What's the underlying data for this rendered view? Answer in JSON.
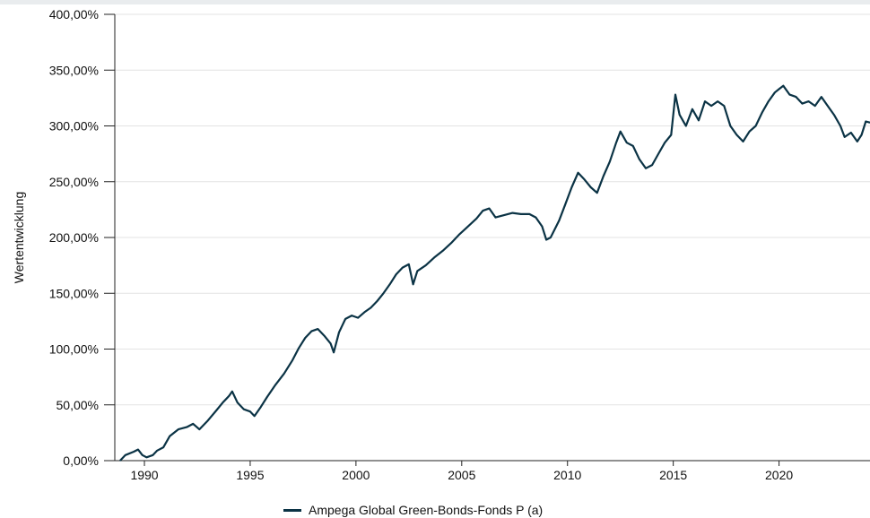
{
  "chart_data": {
    "type": "line",
    "ylabel": "Wertentwicklung",
    "y_ticks": [
      "0,00%",
      "50,00%",
      "100,00%",
      "150,00%",
      "200,00%",
      "250,00%",
      "300,00%",
      "350,00%",
      "400,00%"
    ],
    "x_ticks": [
      "1990",
      "1995",
      "2000",
      "2005",
      "2010",
      "2015",
      "2020"
    ],
    "ylim": [
      0,
      400
    ],
    "xlim": [
      1988.6,
      2024.3
    ],
    "grid": "horizontal",
    "legend_position": "bottom-center",
    "series": [
      {
        "name": "Ampega Global Green-Bonds-Fonds P (a)",
        "color": "#0b3345",
        "points": [
          [
            1988.85,
            0
          ],
          [
            1989.1,
            5
          ],
          [
            1989.5,
            8
          ],
          [
            1989.7,
            10
          ],
          [
            1989.9,
            5
          ],
          [
            1990.1,
            3
          ],
          [
            1990.4,
            5
          ],
          [
            1990.6,
            9
          ],
          [
            1990.9,
            12
          ],
          [
            1991.2,
            22
          ],
          [
            1991.6,
            28
          ],
          [
            1992.0,
            30
          ],
          [
            1992.3,
            33
          ],
          [
            1992.6,
            28
          ],
          [
            1993.0,
            36
          ],
          [
            1993.4,
            45
          ],
          [
            1993.7,
            52
          ],
          [
            1994.0,
            58
          ],
          [
            1994.15,
            62
          ],
          [
            1994.4,
            52
          ],
          [
            1994.7,
            46
          ],
          [
            1995.0,
            44
          ],
          [
            1995.2,
            40
          ],
          [
            1995.5,
            48
          ],
          [
            1995.8,
            57
          ],
          [
            1996.2,
            68
          ],
          [
            1996.6,
            78
          ],
          [
            1997.0,
            90
          ],
          [
            1997.3,
            101
          ],
          [
            1997.6,
            110
          ],
          [
            1997.9,
            116
          ],
          [
            1998.2,
            118
          ],
          [
            1998.5,
            112
          ],
          [
            1998.8,
            105
          ],
          [
            1998.95,
            97
          ],
          [
            1999.2,
            115
          ],
          [
            1999.5,
            127
          ],
          [
            1999.8,
            130
          ],
          [
            2000.1,
            128
          ],
          [
            2000.4,
            133
          ],
          [
            2000.7,
            137
          ],
          [
            2001.0,
            143
          ],
          [
            2001.3,
            150
          ],
          [
            2001.6,
            158
          ],
          [
            2001.9,
            167
          ],
          [
            2002.2,
            173
          ],
          [
            2002.5,
            176
          ],
          [
            2002.7,
            158
          ],
          [
            2002.9,
            170
          ],
          [
            2003.3,
            175
          ],
          [
            2003.7,
            182
          ],
          [
            2004.1,
            188
          ],
          [
            2004.5,
            195
          ],
          [
            2004.9,
            203
          ],
          [
            2005.3,
            210
          ],
          [
            2005.7,
            217
          ],
          [
            2006.0,
            224
          ],
          [
            2006.3,
            226
          ],
          [
            2006.6,
            218
          ],
          [
            2007.0,
            220
          ],
          [
            2007.4,
            222
          ],
          [
            2007.8,
            221
          ],
          [
            2008.2,
            221
          ],
          [
            2008.5,
            218
          ],
          [
            2008.8,
            210
          ],
          [
            2009.0,
            198
          ],
          [
            2009.2,
            200
          ],
          [
            2009.6,
            215
          ],
          [
            2009.9,
            230
          ],
          [
            2010.2,
            245
          ],
          [
            2010.5,
            258
          ],
          [
            2010.8,
            252
          ],
          [
            2011.1,
            245
          ],
          [
            2011.4,
            240
          ],
          [
            2011.7,
            255
          ],
          [
            2012.0,
            268
          ],
          [
            2012.3,
            285
          ],
          [
            2012.5,
            295
          ],
          [
            2012.8,
            285
          ],
          [
            2013.1,
            282
          ],
          [
            2013.4,
            270
          ],
          [
            2013.7,
            262
          ],
          [
            2014.0,
            265
          ],
          [
            2014.3,
            275
          ],
          [
            2014.6,
            285
          ],
          [
            2014.9,
            292
          ],
          [
            2015.1,
            328
          ],
          [
            2015.3,
            310
          ],
          [
            2015.6,
            300
          ],
          [
            2015.9,
            315
          ],
          [
            2016.2,
            305
          ],
          [
            2016.5,
            322
          ],
          [
            2016.8,
            318
          ],
          [
            2017.1,
            322
          ],
          [
            2017.4,
            318
          ],
          [
            2017.7,
            300
          ],
          [
            2018.0,
            292
          ],
          [
            2018.3,
            286
          ],
          [
            2018.6,
            295
          ],
          [
            2018.9,
            300
          ],
          [
            2019.2,
            312
          ],
          [
            2019.5,
            322
          ],
          [
            2019.8,
            330
          ],
          [
            2020.0,
            333
          ],
          [
            2020.2,
            336
          ],
          [
            2020.5,
            328
          ],
          [
            2020.8,
            326
          ],
          [
            2021.1,
            320
          ],
          [
            2021.4,
            322
          ],
          [
            2021.7,
            318
          ],
          [
            2022.0,
            326
          ],
          [
            2022.3,
            318
          ],
          [
            2022.6,
            310
          ],
          [
            2022.9,
            300
          ],
          [
            2023.1,
            290
          ],
          [
            2023.4,
            294
          ],
          [
            2023.7,
            286
          ],
          [
            2023.9,
            292
          ],
          [
            2024.1,
            304
          ],
          [
            2024.3,
            303
          ]
        ]
      }
    ]
  }
}
